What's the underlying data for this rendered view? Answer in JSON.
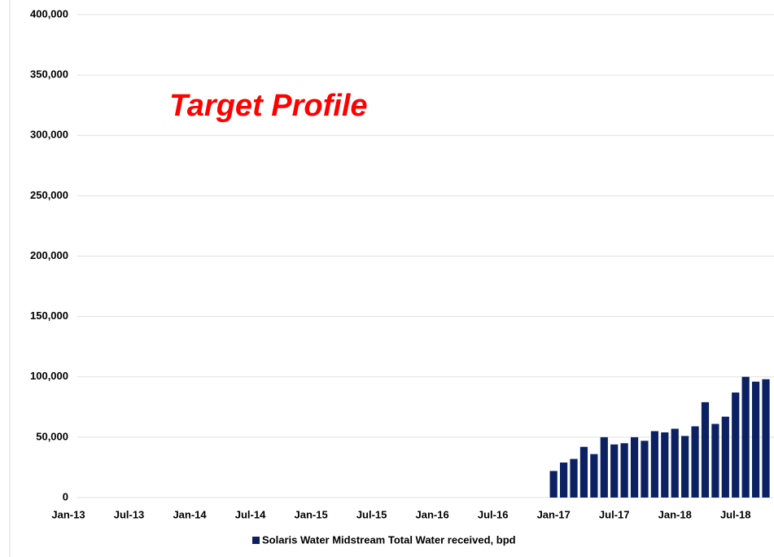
{
  "chart_data": {
    "type": "bar",
    "annotation": "Target Profile",
    "categories": [
      "Jan-13",
      null,
      null,
      null,
      null,
      null,
      "Jul-13",
      null,
      null,
      null,
      null,
      null,
      "Jan-14",
      null,
      null,
      null,
      null,
      null,
      "Jul-14",
      null,
      null,
      null,
      null,
      null,
      "Jan-15",
      null,
      null,
      null,
      null,
      null,
      "Jul-15",
      null,
      null,
      null,
      null,
      null,
      "Jan-16",
      null,
      null,
      null,
      null,
      null,
      "Jul-16",
      null,
      null,
      null,
      null,
      null,
      "Jan-17",
      null,
      null,
      null,
      null,
      null,
      "Jul-17",
      null,
      null,
      null,
      null,
      null,
      "Jan-18",
      null,
      null,
      null,
      null,
      null,
      "Jul-18",
      null,
      null,
      null
    ],
    "series": [
      {
        "name": "Solaris Water Midstream Total Water received, bpd",
        "color": "#0b2161",
        "values": [
          null,
          null,
          null,
          null,
          null,
          null,
          null,
          null,
          null,
          null,
          null,
          null,
          null,
          null,
          null,
          null,
          null,
          null,
          null,
          null,
          null,
          null,
          null,
          null,
          null,
          null,
          null,
          null,
          null,
          null,
          null,
          null,
          null,
          null,
          null,
          null,
          null,
          null,
          null,
          null,
          null,
          null,
          null,
          null,
          null,
          null,
          null,
          null,
          22000,
          29000,
          32000,
          42000,
          36000,
          50000,
          44000,
          45000,
          50000,
          47000,
          55000,
          54000,
          57000,
          51000,
          59000,
          79000,
          61000,
          67000,
          87000,
          100000,
          96000,
          98000
        ]
      }
    ],
    "ylim": [
      0,
      400000
    ],
    "yticks": [
      0,
      {
        "value": 50000,
        "label": "50,000"
      },
      {
        "value": 100000,
        "label": "100,000"
      },
      {
        "value": 150000,
        "label": "150,000"
      },
      {
        "value": 200000,
        "label": "200,000"
      },
      {
        "value": 250000,
        "label": "250,000"
      },
      {
        "value": 300000,
        "label": "300,000"
      },
      {
        "value": 350000,
        "label": "350,000"
      },
      {
        "value": 400000,
        "label": "400,000"
      }
    ],
    "grid": true
  }
}
